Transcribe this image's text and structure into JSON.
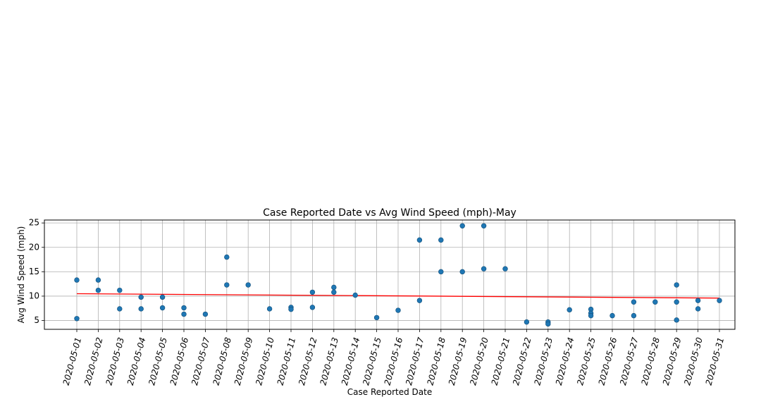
{
  "chart_data": {
    "type": "scatter",
    "title": "Case Reported Date vs Avg Wind Speed (mph)-May",
    "xlabel": "Case Reported Date",
    "ylabel": "Avg Wind Speed (mph)",
    "categories": [
      "2020-05-01",
      "2020-05-02",
      "2020-05-03",
      "2020-05-04",
      "2020-05-05",
      "2020-05-06",
      "2020-05-07",
      "2020-05-08",
      "2020-05-09",
      "2020-05-10",
      "2020-05-11",
      "2020-05-12",
      "2020-05-13",
      "2020-05-14",
      "2020-05-15",
      "2020-05-16",
      "2020-05-17",
      "2020-05-18",
      "2020-05-19",
      "2020-05-20",
      "2020-05-21",
      "2020-05-22",
      "2020-05-23",
      "2020-05-24",
      "2020-05-25",
      "2020-05-26",
      "2020-05-27",
      "2020-05-28",
      "2020-05-29",
      "2020-05-30",
      "2020-05-31"
    ],
    "yticks": [
      5,
      10,
      15,
      20,
      25
    ],
    "ylim": [
      3.2,
      25.6
    ],
    "grid": true,
    "point_color": "#1f77b4",
    "trend_color": "#ff0000",
    "points": [
      {
        "x": "2020-05-01",
        "y": 13.3
      },
      {
        "x": "2020-05-01",
        "y": 5.4
      },
      {
        "x": "2020-05-02",
        "y": 13.3
      },
      {
        "x": "2020-05-02",
        "y": 11.2
      },
      {
        "x": "2020-05-03",
        "y": 11.2
      },
      {
        "x": "2020-05-03",
        "y": 7.4
      },
      {
        "x": "2020-05-04",
        "y": 9.8
      },
      {
        "x": "2020-05-04",
        "y": 7.4
      },
      {
        "x": "2020-05-05",
        "y": 9.8
      },
      {
        "x": "2020-05-05",
        "y": 7.6
      },
      {
        "x": "2020-05-06",
        "y": 7.6
      },
      {
        "x": "2020-05-06",
        "y": 6.3
      },
      {
        "x": "2020-05-07",
        "y": 6.3
      },
      {
        "x": "2020-05-08",
        "y": 18.0
      },
      {
        "x": "2020-05-08",
        "y": 12.3
      },
      {
        "x": "2020-05-09",
        "y": 12.3
      },
      {
        "x": "2020-05-10",
        "y": 7.4
      },
      {
        "x": "2020-05-11",
        "y": 7.7
      },
      {
        "x": "2020-05-11",
        "y": 7.3
      },
      {
        "x": "2020-05-12",
        "y": 10.8
      },
      {
        "x": "2020-05-12",
        "y": 7.7
      },
      {
        "x": "2020-05-13",
        "y": 11.8
      },
      {
        "x": "2020-05-13",
        "y": 10.8
      },
      {
        "x": "2020-05-14",
        "y": 10.2
      },
      {
        "x": "2020-05-15",
        "y": 5.6
      },
      {
        "x": "2020-05-16",
        "y": 7.1
      },
      {
        "x": "2020-05-17",
        "y": 21.5
      },
      {
        "x": "2020-05-17",
        "y": 9.1
      },
      {
        "x": "2020-05-18",
        "y": 21.5
      },
      {
        "x": "2020-05-18",
        "y": 15.0
      },
      {
        "x": "2020-05-19",
        "y": 24.4
      },
      {
        "x": "2020-05-19",
        "y": 15.0
      },
      {
        "x": "2020-05-20",
        "y": 24.4
      },
      {
        "x": "2020-05-20",
        "y": 15.6
      },
      {
        "x": "2020-05-21",
        "y": 15.6
      },
      {
        "x": "2020-05-22",
        "y": 4.7
      },
      {
        "x": "2020-05-23",
        "y": 4.7
      },
      {
        "x": "2020-05-23",
        "y": 4.3
      },
      {
        "x": "2020-05-24",
        "y": 7.2
      },
      {
        "x": "2020-05-25",
        "y": 7.3
      },
      {
        "x": "2020-05-25",
        "y": 6.5
      },
      {
        "x": "2020-05-25",
        "y": 6.0
      },
      {
        "x": "2020-05-26",
        "y": 6.0
      },
      {
        "x": "2020-05-27",
        "y": 8.8
      },
      {
        "x": "2020-05-27",
        "y": 6.0
      },
      {
        "x": "2020-05-28",
        "y": 8.8
      },
      {
        "x": "2020-05-29",
        "y": 12.3
      },
      {
        "x": "2020-05-29",
        "y": 8.8
      },
      {
        "x": "2020-05-29",
        "y": 5.1
      },
      {
        "x": "2020-05-30",
        "y": 9.1
      },
      {
        "x": "2020-05-30",
        "y": 7.4
      },
      {
        "x": "2020-05-31",
        "y": 9.1
      }
    ],
    "trendline": {
      "start": {
        "x": "2020-05-01",
        "y": 10.5
      },
      "end": {
        "x": "2020-05-31",
        "y": 9.6
      }
    }
  }
}
